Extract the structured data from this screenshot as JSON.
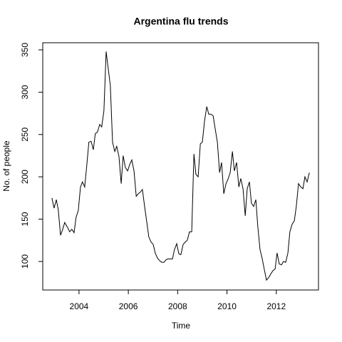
{
  "chart_data": {
    "type": "line",
    "title": "Argentina flu trends",
    "x_label": "Time",
    "y_label": "No. of people",
    "x": [
      2002.9,
      2002.99,
      2003.08,
      2003.16,
      2003.25,
      2003.34,
      2003.42,
      2003.54,
      2003.62,
      2003.71,
      2003.8,
      2003.88,
      2003.97,
      2004.06,
      2004.14,
      2004.23,
      2004.32,
      2004.4,
      2004.49,
      2004.58,
      2004.66,
      2004.75,
      2004.84,
      2004.92,
      2005.01,
      2005.1,
      2005.18,
      2005.27,
      2005.36,
      2005.45,
      2005.53,
      2005.62,
      2005.71,
      2005.79,
      2005.88,
      2005.97,
      2006.05,
      2006.14,
      2006.23,
      2006.32,
      2006.4,
      2006.49,
      2006.57,
      2006.66,
      2006.75,
      2006.83,
      2006.92,
      2007.01,
      2007.09,
      2007.18,
      2007.27,
      2007.35,
      2007.44,
      2007.53,
      2007.61,
      2007.7,
      2007.79,
      2007.87,
      2007.96,
      2008.05,
      2008.13,
      2008.22,
      2008.31,
      2008.39,
      2008.48,
      2008.57,
      2008.66,
      2008.74,
      2008.83,
      2008.92,
      2009.0,
      2009.09,
      2009.18,
      2009.26,
      2009.35,
      2009.44,
      2009.52,
      2009.61,
      2009.7,
      2009.78,
      2009.87,
      2009.96,
      2010.04,
      2010.13,
      2010.22,
      2010.3,
      2010.39,
      2010.48,
      2010.56,
      2010.65,
      2010.74,
      2010.82,
      2010.91,
      2010.99,
      2011.08,
      2011.17,
      2011.25,
      2011.34,
      2011.43,
      2011.51,
      2011.6,
      2011.69,
      2011.77,
      2011.86,
      2011.95,
      2012.03,
      2012.12,
      2012.21,
      2012.29,
      2012.38,
      2012.47,
      2012.55,
      2012.64,
      2012.73,
      2012.81,
      2012.9,
      2012.99,
      2013.08,
      2013.16,
      2013.25,
      2013.34
    ],
    "values": [
      175,
      163,
      173,
      161,
      131,
      138,
      146,
      140,
      135,
      138,
      134,
      152,
      160,
      188,
      194,
      188,
      215,
      241,
      242,
      232,
      251,
      253,
      262,
      259,
      278,
      348,
      329,
      308,
      241,
      230,
      236,
      224,
      192,
      225,
      211,
      207,
      214,
      220,
      207,
      177,
      180,
      182,
      185,
      165,
      146,
      129,
      123,
      120,
      110,
      104,
      101,
      99,
      99,
      102,
      103,
      103,
      103,
      114,
      121,
      109,
      108,
      120,
      123,
      125,
      135,
      135,
      227,
      203,
      200,
      239,
      241,
      266,
      283,
      274,
      274,
      272,
      257,
      241,
      205,
      217,
      180,
      192,
      197,
      205,
      230,
      207,
      217,
      188,
      198,
      186,
      154,
      186,
      194,
      169,
      165,
      173,
      141,
      114,
      103,
      91,
      78,
      81,
      85,
      89,
      91,
      110,
      97,
      96,
      100,
      99,
      110,
      135,
      144,
      148,
      165,
      192,
      188,
      186,
      200,
      194,
      205
    ],
    "color": "#000000",
    "xlim": [
      2002.53,
      2013.71
    ],
    "xticks": [
      2004,
      2006,
      2008,
      2010,
      2012
    ],
    "ylim": [
      66.3,
      358.4
    ],
    "yticks": [
      100,
      150,
      200,
      250,
      300,
      350
    ]
  }
}
